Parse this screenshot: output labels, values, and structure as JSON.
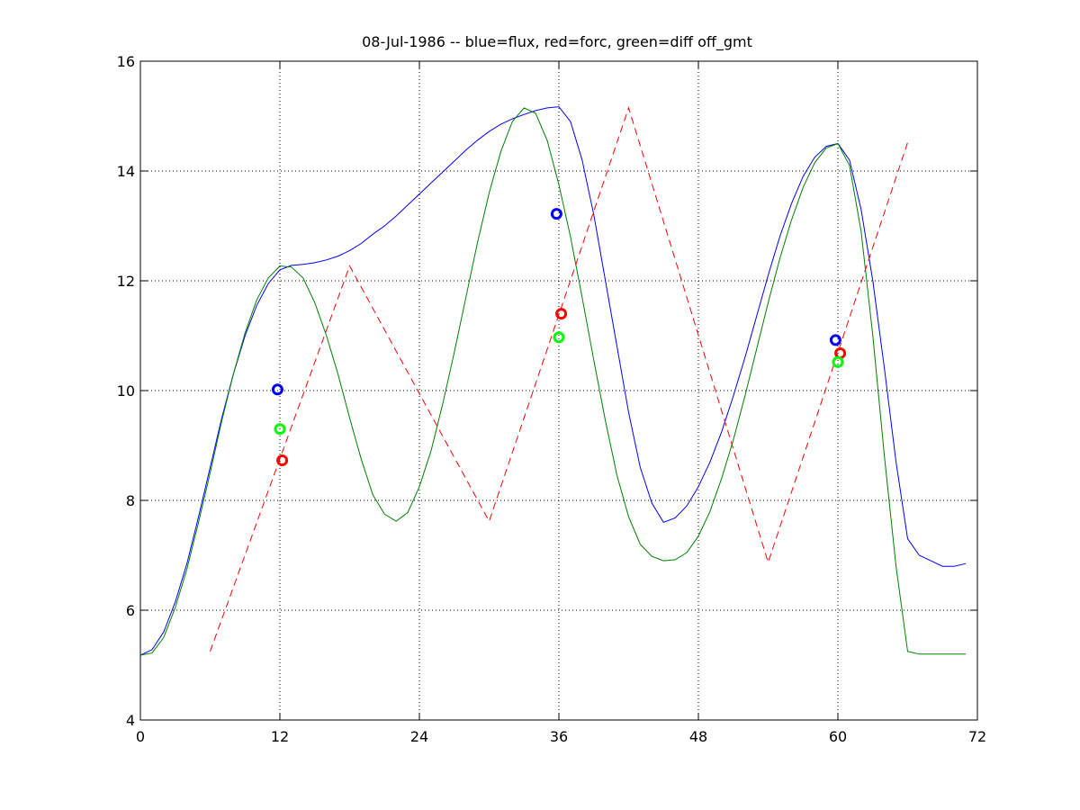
{
  "chart_data": {
    "type": "line",
    "title": "08-Jul-1986 -- blue=flux, red=forc, green=diff off_gmt",
    "xlabel": "",
    "ylabel": "",
    "xlim": [
      0,
      72
    ],
    "ylim": [
      4,
      16
    ],
    "xticks": [
      0,
      12,
      24,
      36,
      48,
      60,
      72
    ],
    "yticks": [
      4,
      6,
      8,
      10,
      12,
      14,
      16
    ],
    "xtick_labels": [
      "0",
      "12",
      "24",
      "36",
      "48",
      "60",
      "72"
    ],
    "ytick_labels": [
      "4",
      "6",
      "8",
      "10",
      "12",
      "14",
      "16"
    ],
    "grid": true,
    "series": [
      {
        "color": "#0000ff",
        "style": "solid",
        "x": [
          0,
          1,
          2,
          3,
          4,
          5,
          6,
          7,
          8,
          9,
          10,
          11,
          12,
          13,
          14,
          15,
          16,
          17,
          18,
          19,
          20,
          21,
          22,
          23,
          24,
          25,
          26,
          27,
          28,
          29,
          30,
          31,
          32,
          33,
          34,
          35,
          36,
          37,
          38,
          39,
          40,
          41,
          42,
          43,
          44,
          45,
          46,
          47,
          48,
          49,
          50,
          51,
          52,
          53,
          54,
          55,
          56,
          57,
          58,
          59,
          60,
          61,
          62,
          63,
          64,
          65,
          66,
          67,
          68,
          69,
          70,
          71
        ],
        "values": [
          5.18,
          5.28,
          5.6,
          6.15,
          6.85,
          7.7,
          8.6,
          9.5,
          10.3,
          11.0,
          11.55,
          11.95,
          12.2,
          12.28,
          12.3,
          12.33,
          12.38,
          12.45,
          12.55,
          12.68,
          12.85,
          13.0,
          13.18,
          13.38,
          13.58,
          13.78,
          13.98,
          14.18,
          14.38,
          14.56,
          14.72,
          14.85,
          14.95,
          15.03,
          15.1,
          15.15,
          15.17,
          14.9,
          14.2,
          13.2,
          12.0,
          10.8,
          9.6,
          8.6,
          7.95,
          7.6,
          7.68,
          7.9,
          8.25,
          8.7,
          9.25,
          9.9,
          10.6,
          11.35,
          12.1,
          12.8,
          13.4,
          13.9,
          14.25,
          14.45,
          14.5,
          14.2,
          13.3,
          12.0,
          10.4,
          8.7,
          7.3,
          7.0,
          6.9,
          6.8,
          6.8,
          6.85
        ]
      },
      {
        "color": "#008000",
        "style": "solid",
        "x": [
          0,
          1,
          2,
          3,
          4,
          5,
          6,
          7,
          8,
          9,
          10,
          11,
          12,
          13,
          14,
          15,
          16,
          17,
          18,
          19,
          20,
          21,
          22,
          23,
          24,
          25,
          26,
          27,
          28,
          29,
          30,
          31,
          32,
          33,
          34,
          35,
          36,
          37,
          38,
          39,
          40,
          41,
          42,
          43,
          44,
          45,
          46,
          47,
          48,
          49,
          50,
          51,
          52,
          53,
          54,
          55,
          56,
          57,
          58,
          59,
          60,
          61,
          62,
          63,
          64,
          65,
          66,
          67,
          68,
          69,
          70,
          71
        ],
        "values": [
          5.18,
          5.22,
          5.5,
          6.05,
          6.75,
          7.6,
          8.5,
          9.45,
          10.3,
          11.05,
          11.65,
          12.05,
          12.27,
          12.25,
          12.05,
          11.6,
          11.0,
          10.3,
          9.5,
          8.75,
          8.1,
          7.75,
          7.62,
          7.78,
          8.25,
          8.9,
          9.75,
          10.7,
          11.7,
          12.7,
          13.6,
          14.35,
          14.9,
          15.15,
          15.05,
          14.55,
          13.75,
          12.8,
          11.7,
          10.55,
          9.45,
          8.45,
          7.7,
          7.2,
          6.98,
          6.9,
          6.92,
          7.05,
          7.35,
          7.8,
          8.4,
          9.1,
          9.9,
          10.75,
          11.6,
          12.4,
          13.1,
          13.7,
          14.15,
          14.42,
          14.5,
          14.1,
          12.9,
          11.0,
          8.8,
          6.8,
          5.25,
          5.2,
          5.2,
          5.2,
          5.2,
          5.2
        ]
      },
      {
        "color": "#ff0000",
        "style": "dashed",
        "x": [
          6,
          18,
          30,
          42,
          54,
          66
        ],
        "values": [
          5.25,
          12.27,
          7.62,
          15.15,
          6.87,
          14.52
        ]
      }
    ],
    "points": [
      {
        "x": 11.8,
        "y": 10.02,
        "color": "#0000ff"
      },
      {
        "x": 12.0,
        "y": 9.3,
        "color": "#00ff00"
      },
      {
        "x": 12.2,
        "y": 8.73,
        "color": "#ff0000"
      },
      {
        "x": 35.8,
        "y": 13.22,
        "color": "#0000ff"
      },
      {
        "x": 36.2,
        "y": 11.4,
        "color": "#ff0000"
      },
      {
        "x": 36.0,
        "y": 10.97,
        "color": "#00ff00"
      },
      {
        "x": 59.8,
        "y": 10.92,
        "color": "#0000ff"
      },
      {
        "x": 60.2,
        "y": 10.68,
        "color": "#ff0000"
      },
      {
        "x": 60.0,
        "y": 10.52,
        "color": "#00ff00"
      }
    ]
  }
}
